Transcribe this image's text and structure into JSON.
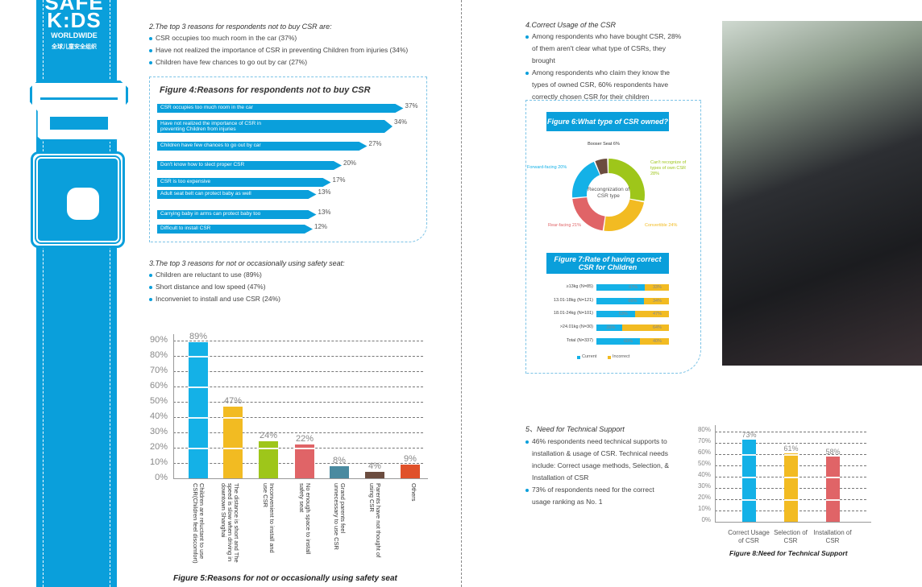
{
  "logo": {
    "line1": "SAFE",
    "line2": "K:DS",
    "line3": "WORLDWIDE",
    "line4": "全球儿童安全组织"
  },
  "section2": {
    "title": "2.The top 3 reasons for respondents not to buy CSR are:",
    "bullets": [
      "CSR occupies too much room in the car (37%)",
      "Have not realized the importance of CSR in preventing Children from injuries (34%)",
      "Children have few chances to go out by car (27%)"
    ]
  },
  "section3": {
    "title": "3.The top 3 reasons for not or occasionally using safety seat:",
    "bullets": [
      "Children are reluctant to use (89%)",
      "Short distance and low speed (47%)",
      "Inconveniet to install and use CSR (24%)"
    ]
  },
  "section4": {
    "title": "4.Correct Usage of the CSR",
    "bullets": [
      "Among respondents who have bought CSR, 28% of them aren't clear what type of CSRs, they brought",
      "Among respondents who claim they know the types of owned CSR, 60% respondents have correctly chosen CSR for their children"
    ]
  },
  "section5": {
    "title": "5、Need for Technical Support",
    "bullets": [
      "46% respondents need technical supports to installation & usage of CSR. Technical needs include: Correct usage methods, Selection, & Installation of CSR",
      "73% of respondents need for the correct usage ranking as No. 1"
    ]
  },
  "chart_data": [
    {
      "id": "fig4",
      "type": "bar",
      "orientation": "horizontal",
      "title": "Figure 4:Reasons for respondents not to buy CSR",
      "categories": [
        "CSR occupies too much room in the car",
        "Have not realized the importance of CSR in preventing Children from injuries",
        "Children have few chances to go out by car",
        "Don't know how to slect proper CSR",
        "CSR is too expensive",
        "Adult seat belt can protect baby as well",
        "Carrying baby in arms can protect baby too",
        "Difficult to install CSR"
      ],
      "values": [
        37,
        34,
        27,
        20,
        17,
        13,
        13,
        12
      ],
      "labels": [
        "37%",
        "34%",
        "27%",
        "20%",
        "17%",
        "13%",
        "13%",
        "12%"
      ],
      "color": "#0a9fdb"
    },
    {
      "id": "fig5",
      "type": "bar",
      "title": "Figure 5:Reasons for not or occasionally using safety seat",
      "categories": [
        "Children are reluctant to use CSR(Children feel discomfort)",
        "The distance is short and The speed is slow when driving in downtown Shanghai",
        "Inconvenient to install and use CSR",
        "No enough space to install safety seat",
        "Grand parents feel unnecessary to use CSR",
        "Parents have not thought of using CSR",
        "Others"
      ],
      "values": [
        89,
        47,
        24,
        22,
        8,
        4,
        9
      ],
      "labels": [
        "89%",
        "47%",
        "24%",
        "22%",
        "8%",
        "4%",
        "9%"
      ],
      "colors": [
        "#14b1e7",
        "#f2bb22",
        "#9ec61a",
        "#e06467",
        "#4a8aa0",
        "#6b4c3f",
        "#e0512a"
      ],
      "yticks": [
        "0%",
        "10%",
        "20%",
        "30%",
        "40%",
        "50%",
        "60%",
        "70%",
        "80%",
        "90%"
      ],
      "ylim": [
        0,
        90
      ]
    },
    {
      "id": "fig6",
      "type": "pie",
      "title": "Figure 6:What type of CSR owned?",
      "center_label": "Recongnization of CSR type",
      "slices": [
        {
          "label": "Booser Seat 6%",
          "value": 6,
          "color": "#6b4c3f"
        },
        {
          "label": "Can't recognize of types of own CSR 28%",
          "value": 28,
          "color": "#9ec61a"
        },
        {
          "label": "Convertible 24%",
          "value": 24,
          "color": "#f2bb22"
        },
        {
          "label": "Rear-facing 21%",
          "value": 21,
          "color": "#e06467"
        },
        {
          "label": "Forward-facing 20%",
          "value": 20,
          "color": "#14b1e7"
        }
      ]
    },
    {
      "id": "fig7",
      "type": "bar",
      "orientation": "horizontal",
      "stacked": true,
      "title": "Figure 7:Rate of having correct CSR for Children",
      "categories": [
        "≥13kg (N=85)",
        "13.01-18kg (N=121)",
        "18.01-24kg (N=101)",
        ">24.01kg (N=30)",
        "Total (N=337)"
      ],
      "series": [
        {
          "name": "Current",
          "values": [
            67,
            66,
            53,
            36,
            60
          ],
          "labels": [
            "67%",
            "66%",
            "53%",
            "36%",
            "60%"
          ],
          "color": "#14b1e7"
        },
        {
          "name": "Incorrect",
          "values": [
            33,
            34,
            47,
            64,
            40
          ],
          "labels": [
            "33%",
            "34%",
            "47%",
            "64%",
            "40%"
          ],
          "color": "#f2bb22"
        }
      ]
    },
    {
      "id": "fig8",
      "type": "bar",
      "title": "Figure 8:Need for Technical Support",
      "categories": [
        "Correct Usage of CSR",
        "Selection of CSR",
        "Installation of CSR"
      ],
      "values": [
        73,
        61,
        58
      ],
      "labels": [
        "73%",
        "61%",
        "58%"
      ],
      "colors": [
        "#14b1e7",
        "#f2bb22",
        "#e06467"
      ],
      "yticks": [
        "0%",
        "10%",
        "20%",
        "30%",
        "40%",
        "50%",
        "60%",
        "70%",
        "80%"
      ],
      "ylim": [
        0,
        80
      ]
    }
  ]
}
